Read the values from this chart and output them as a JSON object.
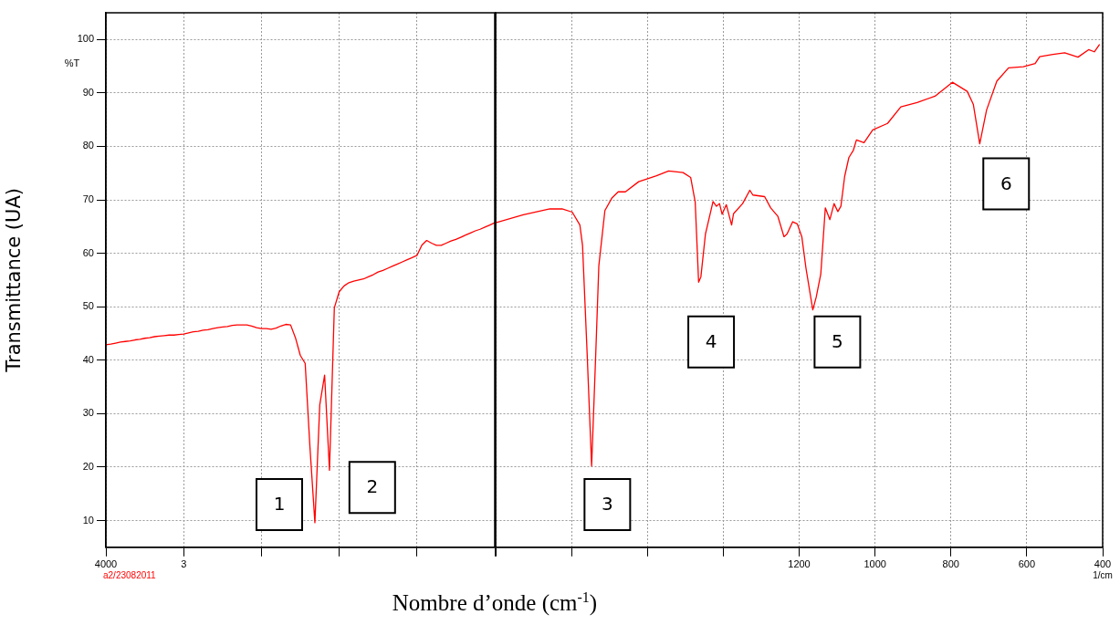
{
  "chart_data": [
    {
      "type": "line",
      "xlabel": "Nombre d’onde (cm$^{-1}$)",
      "ylabel": "Transmittance (UA)",
      "ylim": [
        5,
        105
      ],
      "yticks": [
        10,
        20,
        30,
        40,
        50,
        60,
        70,
        80,
        90,
        100
      ],
      "grid": true,
      "legend": false,
      "annotations": [
        "%T",
        "a2/23082011",
        "1",
        "2"
      ],
      "categories": [
        "4000",
        null,
        null,
        null,
        null,
        null,
        null,
        null,
        null,
        null,
        null,
        null,
        null,
        null,
        null,
        null,
        "3",
        null,
        null,
        null,
        null,
        null,
        null,
        null,
        null,
        null,
        null,
        null,
        null,
        null,
        null,
        null,
        null,
        null,
        null,
        null,
        null,
        null,
        null,
        null,
        null,
        null,
        null,
        null,
        null,
        null,
        null,
        null,
        null,
        null,
        null,
        null,
        null,
        null,
        null,
        null,
        null,
        null,
        null,
        null,
        null,
        null,
        null,
        null,
        null,
        null,
        null,
        null,
        null,
        null,
        null,
        null,
        null,
        null,
        null,
        null,
        null,
        null,
        null,
        null,
        null
      ],
      "series": [
        {
          "color": "#ff0000",
          "values": [
            42.9,
            43.0,
            43.2,
            43.4,
            43.5,
            43.6,
            43.8,
            43.9,
            44.1,
            44.2,
            44.4,
            44.5,
            44.6,
            44.7,
            44.7,
            44.8,
            44.9,
            45.1,
            45.3,
            45.4,
            45.6,
            45.7,
            45.9,
            46.1,
            46.2,
            46.3,
            46.5,
            46.6,
            46.6,
            46.6,
            46.4,
            46.1,
            45.9,
            45.9,
            45.8,
            46.0,
            46.4,
            46.7,
            46.6,
            44.2,
            40.9,
            39.4,
            23.5,
            9.6,
            31.6,
            37.2,
            19.4,
            49.8,
            52.8,
            53.9,
            54.5,
            54.8,
            55.0,
            55.2,
            55.6,
            56.0,
            56.5,
            56.8,
            57.2,
            57.6,
            58.0,
            58.4,
            58.8,
            59.2,
            59.6,
            61.5,
            62.4,
            61.9,
            61.5,
            61.5,
            61.9,
            62.3,
            62.6,
            63.0,
            63.4,
            63.8,
            64.2,
            64.5,
            64.9,
            65.3,
            65.7
          ]
        }
      ]
    },
    {
      "type": "line",
      "xlim": [
        2000,
        400
      ],
      "ylim": [
        5,
        105
      ],
      "xticks": [
        {
          "value": 2000,
          "label": null
        },
        {
          "value": 1800,
          "label": null
        },
        {
          "value": 1600,
          "label": null
        },
        {
          "value": 1400,
          "label": null
        },
        1200,
        1000,
        800,
        600,
        400
      ],
      "yticks": [
        10,
        20,
        30,
        40,
        50,
        60,
        70,
        80,
        90,
        100
      ],
      "tick_labels": "x",
      "grid": true,
      "legend": false,
      "annotations": [
        "1/cm",
        "3",
        "4",
        "5",
        "6"
      ],
      "x": [
        2000,
        1927,
        1857,
        1825,
        1798,
        1778,
        1771,
        1759,
        1747,
        1736,
        1728,
        1712,
        1693,
        1677,
        1658,
        1623,
        1576,
        1544,
        1506,
        1486,
        1474,
        1465,
        1459,
        1447,
        1427,
        1418,
        1410,
        1403,
        1392,
        1378,
        1373,
        1349,
        1330,
        1322,
        1291,
        1275,
        1256,
        1240,
        1232,
        1217,
        1205,
        1193,
        1182,
        1164,
        1155,
        1143,
        1131,
        1119,
        1108,
        1098,
        1090,
        1080,
        1069,
        1057,
        1049,
        1029,
        1006,
        967,
        932,
        889,
        842,
        796,
        757,
        741,
        724,
        706,
        679,
        648,
        609,
        578,
        566,
        531,
        500,
        465,
        437,
        422,
        408
      ],
      "series": [
        {
          "color": "#ff0000",
          "values": [
            65.7,
            67.2,
            68.3,
            68.3,
            67.7,
            65.3,
            61.5,
            41.5,
            20.2,
            41.5,
            57.7,
            68.0,
            70.4,
            71.5,
            71.5,
            73.4,
            74.5,
            75.4,
            75.1,
            74.2,
            69.6,
            54.6,
            55.6,
            63.6,
            69.7,
            68.8,
            69.3,
            67.3,
            69.1,
            65.3,
            67.4,
            69.3,
            71.8,
            70.9,
            70.6,
            68.5,
            66.9,
            63.1,
            63.6,
            65.9,
            65.5,
            63.1,
            57.2,
            49.4,
            51.8,
            56.1,
            68.5,
            66.3,
            69.3,
            67.8,
            68.8,
            74.4,
            77.9,
            79.3,
            81.2,
            80.7,
            83.1,
            84.3,
            87.4,
            88.2,
            89.4,
            92.0,
            90.3,
            87.9,
            80.5,
            86.8,
            92.2,
            94.7,
            94.9,
            95.5,
            96.8,
            97.2,
            97.5,
            96.7,
            98.1,
            97.7,
            99.1
          ]
        }
      ]
    }
  ]
}
